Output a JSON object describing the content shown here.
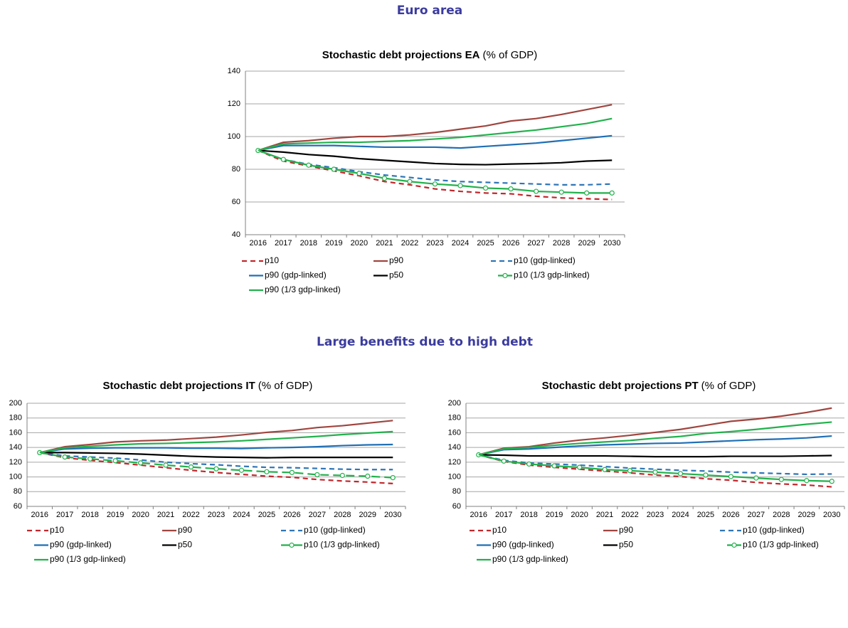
{
  "headings": [
    "Euro area",
    "Large benefits due to high debt"
  ],
  "chart_data": [
    {
      "type": "line",
      "title": "Stochastic debt projections EA",
      "subtitle": "(% of GDP)",
      "x": [
        2016,
        2017,
        2018,
        2019,
        2020,
        2021,
        2022,
        2023,
        2024,
        2025,
        2026,
        2027,
        2028,
        2029,
        2030
      ],
      "ylim": [
        40,
        140
      ],
      "yticks": [
        40,
        60,
        80,
        100,
        120,
        140
      ],
      "grid": true,
      "series": [
        {
          "name": "p10",
          "color": "#c0282d",
          "style": "dashed",
          "values": [
            91.5,
            85,
            82,
            79,
            76,
            72.5,
            70.5,
            68,
            66.5,
            65.5,
            65,
            63.5,
            62.5,
            62,
            61.5
          ]
        },
        {
          "name": "p90",
          "color": "#a0453f",
          "style": "solid",
          "values": [
            91.5,
            96.5,
            97.5,
            99,
            100,
            100,
            101,
            102.5,
            104.5,
            106.5,
            109.5,
            111,
            113.5,
            116.5,
            119.5
          ]
        },
        {
          "name": "p10 (gdp-linked)",
          "color": "#2e75b6",
          "style": "dashed",
          "values": [
            91.5,
            86,
            83,
            81,
            78.5,
            76.5,
            75,
            73.5,
            72.5,
            72,
            71.5,
            71,
            70.5,
            70.5,
            71
          ]
        },
        {
          "name": "p90 (gdp-linked)",
          "color": "#1f6fb5",
          "style": "solid",
          "values": [
            91.5,
            94.5,
            94.5,
            94.5,
            94,
            93.5,
            93.5,
            93.5,
            93,
            94,
            95,
            96,
            97.5,
            99,
            100.5
          ]
        },
        {
          "name": "p50",
          "color": "#000000",
          "style": "solid",
          "values": [
            91.5,
            90.5,
            89,
            88,
            86.5,
            85.5,
            84.5,
            83.5,
            83,
            82.8,
            83.2,
            83.5,
            84,
            85,
            85.5
          ]
        },
        {
          "name": "p10 (1/3 gdp-linked)",
          "color": "#22b14c",
          "style": "solid",
          "marker": "circle",
          "values": [
            91.5,
            86,
            82.5,
            80,
            77.5,
            74.5,
            72.5,
            71,
            70,
            68.5,
            68,
            66.5,
            66,
            65.5,
            65.5
          ]
        },
        {
          "name": "p90 (1/3 gdp-linked)",
          "color": "#22b14c",
          "style": "solid",
          "values": [
            91.5,
            95.5,
            96,
            96.5,
            96.5,
            97,
            97.5,
            98.5,
            99.5,
            101,
            102.5,
            104,
            106,
            108,
            111
          ]
        }
      ]
    },
    {
      "type": "line",
      "title": "Stochastic debt projections IT",
      "subtitle": "(% of GDP)",
      "x": [
        2016,
        2017,
        2018,
        2019,
        2020,
        2021,
        2022,
        2023,
        2024,
        2025,
        2026,
        2027,
        2028,
        2029,
        2030
      ],
      "ylim": [
        60,
        200
      ],
      "yticks": [
        60,
        80,
        100,
        120,
        140,
        160,
        180,
        200
      ],
      "grid": true,
      "series": [
        {
          "name": "p10",
          "color": "#c0282d",
          "style": "dashed",
          "values": [
            133,
            126,
            122.5,
            119.5,
            116,
            112.5,
            109,
            106,
            103.5,
            101,
            99.5,
            96.5,
            94.5,
            93,
            91
          ]
        },
        {
          "name": "p90",
          "color": "#a0453f",
          "style": "solid",
          "values": [
            133,
            141,
            144,
            147.5,
            149,
            150,
            152,
            154,
            157,
            160.5,
            163,
            167,
            169.5,
            173,
            176.5
          ]
        },
        {
          "name": "p10 (gdp-linked)",
          "color": "#2e75b6",
          "style": "dashed",
          "values": [
            133,
            128.5,
            127,
            125.5,
            123,
            120,
            118,
            116.5,
            114.5,
            113,
            112.5,
            111.5,
            110.5,
            110,
            110
          ]
        },
        {
          "name": "p90 (gdp-linked)",
          "color": "#1f6fb5",
          "style": "solid",
          "values": [
            133,
            138,
            139,
            139.5,
            139.5,
            139.5,
            139,
            139,
            138.5,
            139.5,
            140,
            141,
            142.5,
            143.5,
            144
          ]
        },
        {
          "name": "p50",
          "color": "#000000",
          "style": "solid",
          "values": [
            133,
            133,
            132.5,
            132,
            131,
            129.5,
            128,
            127,
            126.5,
            126,
            126.5,
            126.5,
            126.5,
            126.5,
            126.5
          ]
        },
        {
          "name": "p10 (1/3 gdp-linked)",
          "color": "#22b14c",
          "style": "longdash",
          "marker": "circle",
          "values": [
            133,
            127,
            124.5,
            122,
            119,
            116,
            113.5,
            111,
            109,
            107,
            106,
            103,
            102,
            101,
            99
          ]
        },
        {
          "name": "p90 (1/3 gdp-linked)",
          "color": "#22b14c",
          "style": "solid",
          "values": [
            133,
            139.5,
            141.5,
            143.5,
            145,
            145.5,
            146.5,
            147.5,
            149,
            151,
            153,
            155,
            157.5,
            159.5,
            161.5
          ]
        }
      ]
    },
    {
      "type": "line",
      "title": "Stochastic debt projections PT",
      "subtitle": "(% of GDP)",
      "x": [
        2016,
        2017,
        2018,
        2019,
        2020,
        2021,
        2022,
        2023,
        2024,
        2025,
        2026,
        2027,
        2028,
        2029,
        2030
      ],
      "ylim": [
        60,
        200
      ],
      "yticks": [
        60,
        80,
        100,
        120,
        140,
        160,
        180,
        200
      ],
      "grid": true,
      "series": [
        {
          "name": "p10",
          "color": "#c0282d",
          "style": "dashed",
          "values": [
            130,
            121,
            116,
            113,
            110.5,
            108,
            105.5,
            102.5,
            100.5,
            97.5,
            95.5,
            92.5,
            90.5,
            89,
            86.5
          ]
        },
        {
          "name": "p90",
          "color": "#a0453f",
          "style": "solid",
          "values": [
            130,
            139,
            141,
            146,
            150,
            153,
            156.5,
            160.5,
            164.5,
            170,
            175.5,
            178.5,
            182.5,
            187.5,
            193.5
          ]
        },
        {
          "name": "p10 (gdp-linked)",
          "color": "#2e75b6",
          "style": "dashed",
          "values": [
            130,
            122.5,
            119,
            117.5,
            116,
            114,
            112,
            110.5,
            109,
            108,
            106.5,
            105.5,
            104.5,
            103.5,
            104
          ]
        },
        {
          "name": "p90 (gdp-linked)",
          "color": "#1f6fb5",
          "style": "solid",
          "values": [
            130,
            137,
            138,
            140,
            142,
            143.5,
            144.5,
            145.5,
            146,
            147.5,
            149,
            150.5,
            151.5,
            153,
            155.5
          ]
        },
        {
          "name": "p50",
          "color": "#000000",
          "style": "solid",
          "values": [
            130,
            129.5,
            128.5,
            128.5,
            128.5,
            128.5,
            128,
            127.5,
            127.5,
            127.5,
            128,
            128,
            128,
            128.5,
            129
          ]
        },
        {
          "name": "p10 (1/3 gdp-linked)",
          "color": "#22b14c",
          "style": "solid",
          "marker": "circle",
          "values": [
            130,
            121.5,
            117.5,
            115,
            113,
            110,
            108.5,
            106.5,
            104.5,
            102.5,
            100.5,
            98.5,
            96.5,
            95,
            94
          ]
        },
        {
          "name": "p90 (1/3 gdp-linked)",
          "color": "#22b14c",
          "style": "solid",
          "values": [
            130,
            138,
            140,
            143,
            145.5,
            147.5,
            149.5,
            152.5,
            155,
            159,
            161.5,
            164.5,
            168,
            171.5,
            174.5
          ]
        }
      ]
    }
  ]
}
